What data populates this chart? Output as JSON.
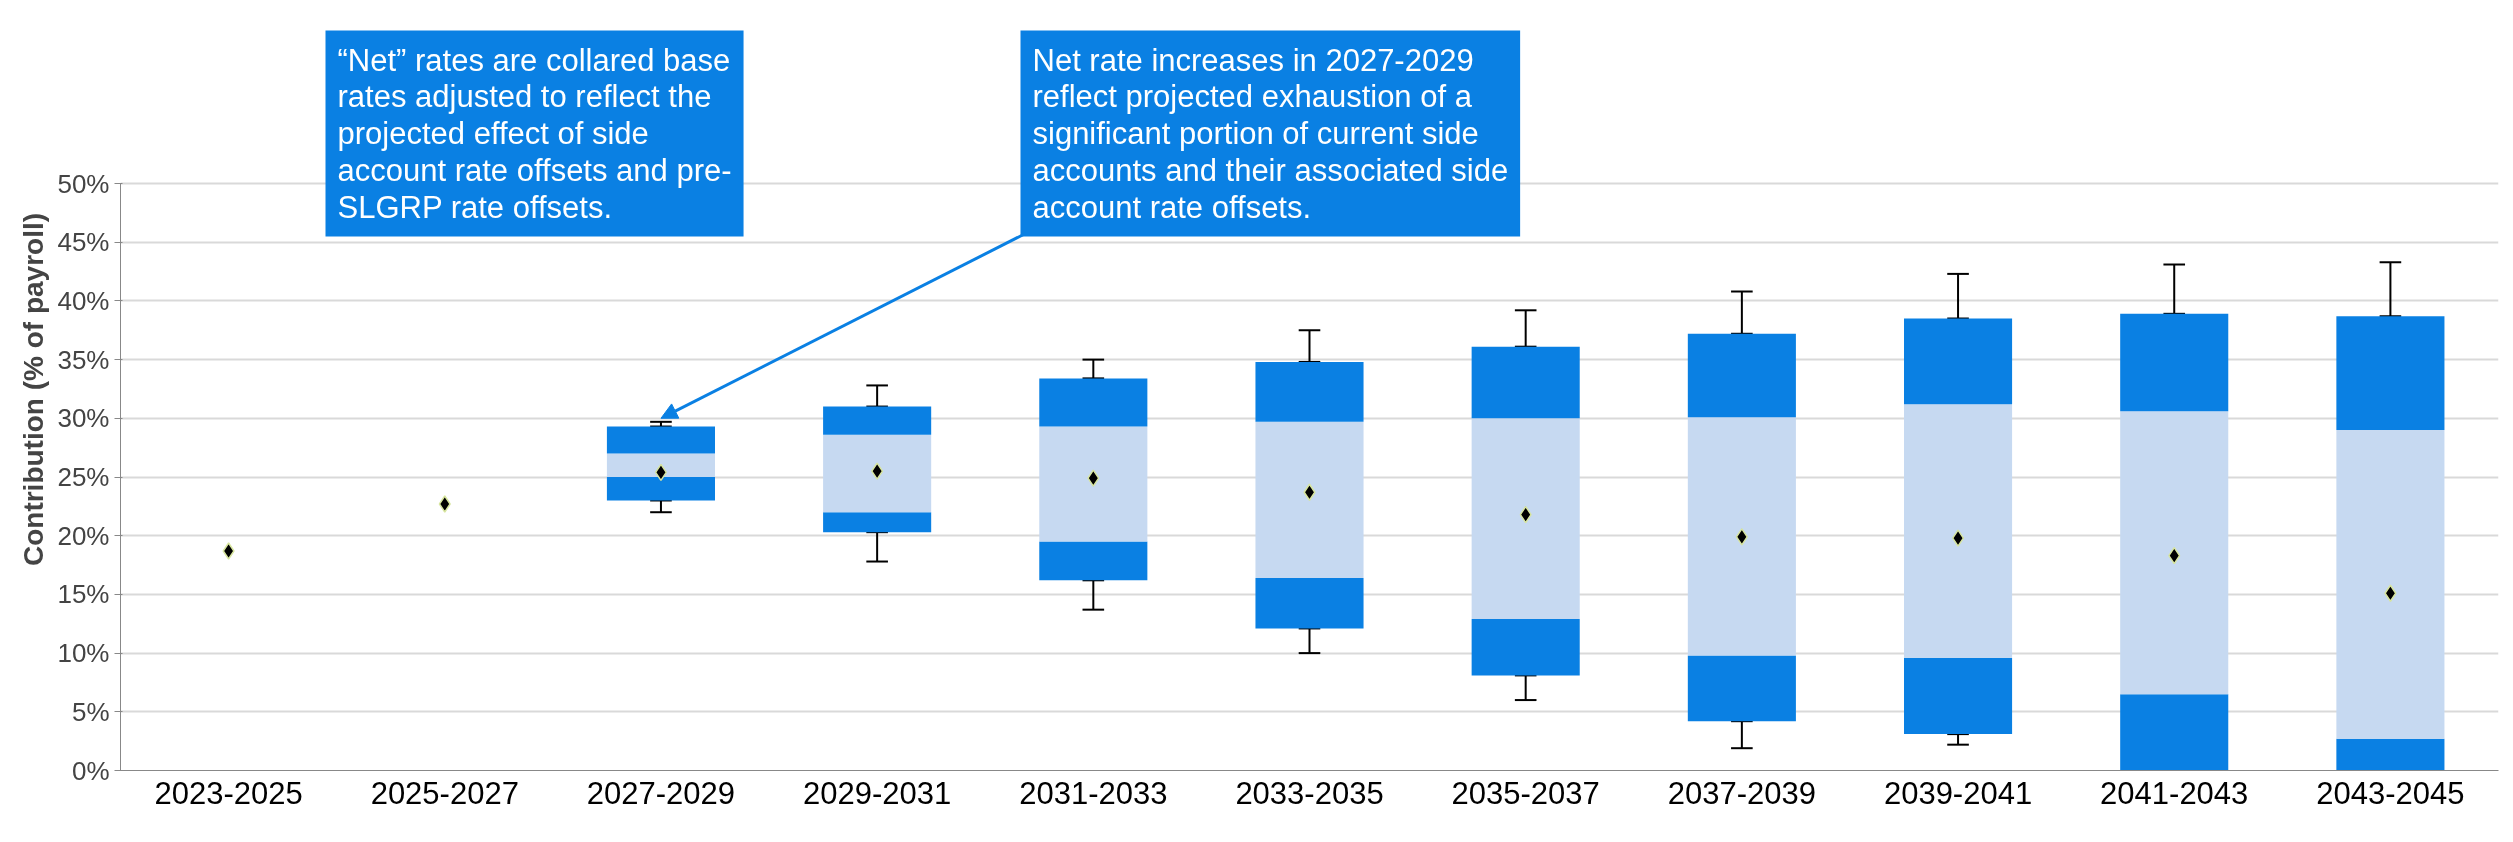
{
  "chart_data": {
    "type": "bar",
    "ylabel": "Contribution (% of payroll)",
    "categories": [
      "2023-2025",
      "2025-2027",
      "2027-2029",
      "2029-2031",
      "2031-2033",
      "2033-2035",
      "2035-2037",
      "2037-2039",
      "2039-2041",
      "2041-2043",
      "2043-2045"
    ],
    "series": [
      {
        "color": "#0a80e3",
        "base": [
          null,
          null,
          23.0,
          20.3,
          16.2,
          12.1,
          8.1,
          4.2,
          3.1,
          0.0,
          0.0
        ],
        "values": [
          null,
          null,
          2.0,
          1.7,
          3.3,
          4.3,
          4.8,
          5.6,
          6.5,
          6.5,
          2.7
        ],
        "errors": [
          null,
          null,
          [
            22.0,
            23.0
          ],
          [
            17.8,
            20.3
          ],
          [
            13.7,
            16.2
          ],
          [
            10.0,
            12.1
          ],
          [
            6.0,
            8.1
          ],
          [
            1.9,
            4.2
          ],
          [
            2.2,
            3.1
          ],
          null,
          null
        ]
      },
      {
        "color": "#c6d9f1",
        "base": [
          null,
          null,
          25.0,
          22.0,
          19.5,
          16.4,
          12.9,
          9.8,
          9.6,
          6.5,
          2.7
        ],
        "values": [
          null,
          null,
          2.0,
          6.6,
          9.8,
          13.3,
          17.1,
          20.3,
          21.6,
          24.1,
          26.3
        ]
      },
      {
        "color": "#0a80e3",
        "base": [
          null,
          null,
          27.0,
          28.6,
          29.3,
          29.7,
          30.0,
          30.1,
          31.2,
          30.6,
          29.0
        ],
        "values": [
          null,
          null,
          2.3,
          2.4,
          4.1,
          5.1,
          6.1,
          7.1,
          7.3,
          8.3,
          9.7
        ],
        "errors": [
          null,
          null,
          [
            29.3,
            29.7
          ],
          [
            31.0,
            32.8
          ],
          [
            33.4,
            35.0
          ],
          [
            34.8,
            37.5
          ],
          [
            36.1,
            39.2
          ],
          [
            37.2,
            40.8
          ],
          [
            38.5,
            42.3
          ],
          [
            38.9,
            43.1
          ],
          [
            38.7,
            43.3
          ]
        ]
      },
      {
        "type": "scatter",
        "marker": "diamond",
        "color": "#000000",
        "values": [
          18.7,
          22.7,
          25.4,
          25.5,
          24.9,
          23.7,
          21.8,
          19.9,
          19.8,
          18.3,
          15.1
        ]
      }
    ],
    "ylim": [
      0,
      50
    ],
    "yticks": [
      {
        "value": 0,
        "label": "0%"
      },
      {
        "value": 5,
        "label": "5%"
      },
      {
        "value": 10,
        "label": "10%"
      },
      {
        "value": 15,
        "label": "15%"
      },
      {
        "value": 20,
        "label": "20%"
      },
      {
        "value": 25,
        "label": "25%"
      },
      {
        "value": 30,
        "label": "30%"
      },
      {
        "value": 35,
        "label": "35%"
      },
      {
        "value": 40,
        "label": "40%"
      },
      {
        "value": 45,
        "label": "45%"
      },
      {
        "value": 50,
        "label": "50%"
      }
    ],
    "grid": "y",
    "annotations": [
      "“Net” rates are collared base rates adjusted to reflect the projected effect of side account rate offsets and pre-SLGRP rate offsets.",
      {
        "text": "Net rate increases in 2027-2029 reflect projected exhaustion of a significant portion of current side accounts and their associated side account rate offsets.",
        "x": "2027-2029",
        "y": 30
      }
    ]
  }
}
